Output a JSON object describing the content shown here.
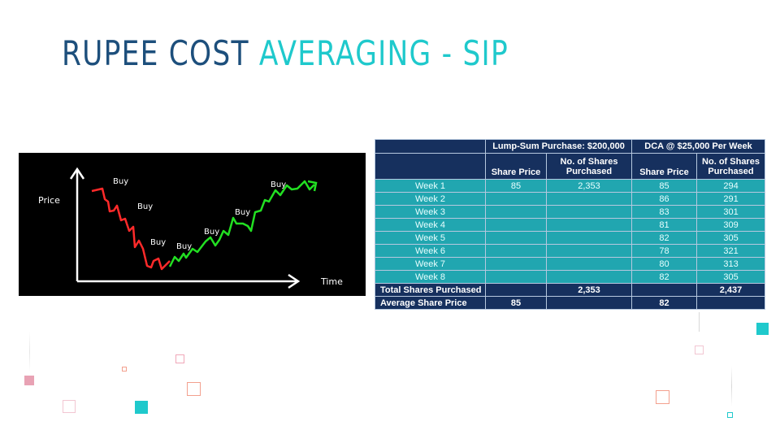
{
  "slide": {
    "title_part1": "RUPEE COST",
    "title_part2": "AVERAGING - SIP",
    "accent_color": "#1fc9cc",
    "title_color": "#1d4f7c"
  },
  "chart": {
    "y_label": "Price",
    "x_label": "Time",
    "buy_labels": [
      "Buy",
      "Buy",
      "Buy",
      "Buy",
      "Buy",
      "Buy",
      "Buy"
    ],
    "down_color": "#ff2a2a",
    "up_color": "#22e022"
  },
  "table": {
    "group_headers": [
      "Lump-Sum Purchase: $200,000",
      "DCA @ $25,000 Per Week"
    ],
    "col_headers": [
      "Share Price",
      "No. of Shares Purchased",
      "Share Price",
      "No. of Shares Purchased"
    ],
    "rows": [
      {
        "label": "Week 1",
        "ls_price": "85",
        "ls_shares": "2,353",
        "dca_price": "85",
        "dca_shares": "294"
      },
      {
        "label": "Week 2",
        "ls_price": "",
        "ls_shares": "",
        "dca_price": "86",
        "dca_shares": "291"
      },
      {
        "label": "Week 3",
        "ls_price": "",
        "ls_shares": "",
        "dca_price": "83",
        "dca_shares": "301"
      },
      {
        "label": "Week 4",
        "ls_price": "",
        "ls_shares": "",
        "dca_price": "81",
        "dca_shares": "309"
      },
      {
        "label": "Week 5",
        "ls_price": "",
        "ls_shares": "",
        "dca_price": "82",
        "dca_shares": "305"
      },
      {
        "label": "Week 6",
        "ls_price": "",
        "ls_shares": "",
        "dca_price": "78",
        "dca_shares": "321"
      },
      {
        "label": "Week 7",
        "ls_price": "",
        "ls_shares": "",
        "dca_price": "80",
        "dca_shares": "313"
      },
      {
        "label": "Week 8",
        "ls_price": "",
        "ls_shares": "",
        "dca_price": "82",
        "dca_shares": "305"
      }
    ],
    "total_label": "Total Shares Purchased",
    "total_ls": "2,353",
    "total_dca": "2,437",
    "avg_label": "Average Share Price",
    "avg_ls": "85",
    "avg_dca": "82"
  }
}
